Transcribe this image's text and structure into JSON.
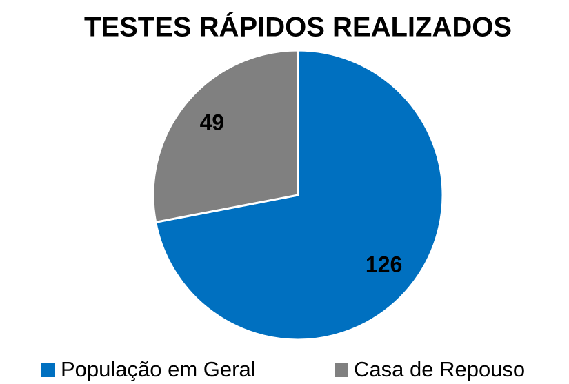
{
  "chart_data": {
    "type": "pie",
    "title": "TESTES RÁPIDOS REALIZADOS",
    "categories": [
      "População em Geral",
      "Casa de Repouso"
    ],
    "values": [
      126,
      49
    ],
    "colors": [
      "#0070c0",
      "#808080"
    ],
    "legend": "bottom"
  }
}
